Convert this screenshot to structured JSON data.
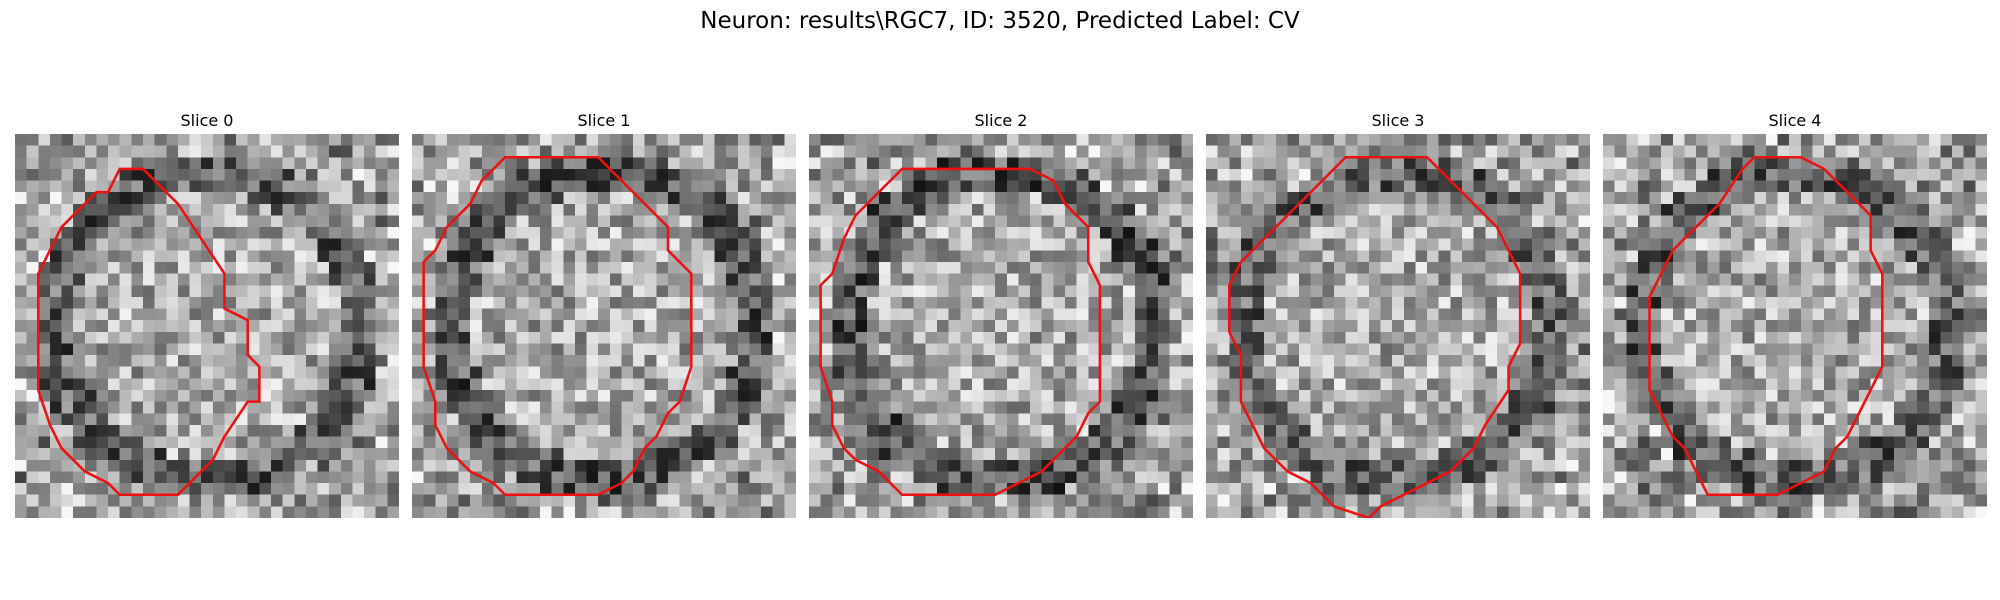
{
  "figure": {
    "title": "Neuron: results\\RGC7, ID: 3520, Predicted Label: CV"
  },
  "colors": {
    "contour": "#ee1111"
  },
  "panels": [
    {
      "title": "Slice 0",
      "seed": 11,
      "dark_rim": 0.7,
      "contour": [
        [
          11,
          3
        ],
        [
          14,
          6
        ],
        [
          18,
          12
        ],
        [
          18,
          15
        ],
        [
          20,
          16
        ],
        [
          20,
          19
        ],
        [
          21,
          20
        ],
        [
          21,
          23
        ],
        [
          20,
          23
        ],
        [
          18,
          26
        ],
        [
          17,
          28
        ],
        [
          16,
          29
        ],
        [
          14,
          31
        ],
        [
          9,
          31
        ],
        [
          8,
          30
        ],
        [
          6,
          29
        ],
        [
          5,
          28
        ],
        [
          4,
          27
        ],
        [
          3,
          25
        ],
        [
          2,
          22
        ],
        [
          2,
          12
        ],
        [
          3,
          10
        ],
        [
          4,
          8
        ],
        [
          5,
          7
        ],
        [
          6,
          6
        ],
        [
          7,
          5
        ],
        [
          8,
          5
        ],
        [
          9,
          3
        ]
      ]
    },
    {
      "title": "Slice 1",
      "seed": 23,
      "dark_rim": 0.75,
      "contour": [
        [
          8,
          2
        ],
        [
          16,
          2
        ],
        [
          18,
          4
        ],
        [
          20,
          6
        ],
        [
          22,
          8
        ],
        [
          22,
          10
        ],
        [
          24,
          12
        ],
        [
          24,
          20
        ],
        [
          23,
          23
        ],
        [
          22,
          24
        ],
        [
          21,
          26
        ],
        [
          20,
          27
        ],
        [
          19,
          29
        ],
        [
          18,
          30
        ],
        [
          16,
          31
        ],
        [
          8,
          31
        ],
        [
          7,
          30
        ],
        [
          5,
          29
        ],
        [
          4,
          28
        ],
        [
          3,
          27
        ],
        [
          2,
          25
        ],
        [
          2,
          23
        ],
        [
          1,
          20
        ],
        [
          1,
          11
        ],
        [
          2,
          10
        ],
        [
          3,
          8
        ],
        [
          5,
          6
        ],
        [
          6,
          4
        ],
        [
          7,
          3
        ]
      ]
    },
    {
      "title": "Slice 2",
      "seed": 37,
      "dark_rim": 0.8,
      "contour": [
        [
          8,
          3
        ],
        [
          19,
          3
        ],
        [
          21,
          4
        ],
        [
          22,
          6
        ],
        [
          24,
          8
        ],
        [
          24,
          11
        ],
        [
          25,
          13
        ],
        [
          25,
          23
        ],
        [
          24,
          24
        ],
        [
          23,
          26
        ],
        [
          21,
          28
        ],
        [
          20,
          29
        ],
        [
          18,
          30
        ],
        [
          16,
          31
        ],
        [
          8,
          31
        ],
        [
          6,
          29
        ],
        [
          4,
          28
        ],
        [
          3,
          27
        ],
        [
          2,
          25
        ],
        [
          2,
          23
        ],
        [
          1,
          20
        ],
        [
          1,
          13
        ],
        [
          2,
          12
        ],
        [
          3,
          9
        ],
        [
          4,
          7
        ],
        [
          6,
          5
        ],
        [
          7,
          4
        ]
      ]
    },
    {
      "title": "Slice 3",
      "seed": 53,
      "dark_rim": 0.65,
      "contour": [
        [
          12,
          2
        ],
        [
          19,
          2
        ],
        [
          21,
          4
        ],
        [
          23,
          6
        ],
        [
          25,
          8
        ],
        [
          26,
          10
        ],
        [
          27,
          12
        ],
        [
          27,
          18
        ],
        [
          26,
          20
        ],
        [
          26,
          22
        ],
        [
          24,
          25
        ],
        [
          23,
          27
        ],
        [
          21,
          29
        ],
        [
          19,
          30
        ],
        [
          17,
          31
        ],
        [
          15,
          32
        ],
        [
          14,
          33
        ],
        [
          11,
          32
        ],
        [
          9,
          30
        ],
        [
          7,
          29
        ],
        [
          5,
          27
        ],
        [
          4,
          25
        ],
        [
          3,
          23
        ],
        [
          3,
          19
        ],
        [
          2,
          17
        ],
        [
          2,
          13
        ],
        [
          3,
          11
        ],
        [
          5,
          9
        ],
        [
          7,
          7
        ],
        [
          9,
          5
        ],
        [
          11,
          3
        ]
      ]
    },
    {
      "title": "Slice 4",
      "seed": 71,
      "dark_rim": 0.7,
      "contour": [
        [
          13,
          2
        ],
        [
          17,
          2
        ],
        [
          19,
          3
        ],
        [
          21,
          5
        ],
        [
          23,
          7
        ],
        [
          23,
          10
        ],
        [
          24,
          12
        ],
        [
          24,
          20
        ],
        [
          23,
          22
        ],
        [
          22,
          24
        ],
        [
          21,
          26
        ],
        [
          20,
          27
        ],
        [
          19,
          29
        ],
        [
          17,
          30
        ],
        [
          15,
          31
        ],
        [
          9,
          31
        ],
        [
          8,
          29
        ],
        [
          7,
          27
        ],
        [
          6,
          26
        ],
        [
          5,
          24
        ],
        [
          4,
          22
        ],
        [
          4,
          14
        ],
        [
          5,
          12
        ],
        [
          6,
          10
        ],
        [
          8,
          8
        ],
        [
          10,
          6
        ],
        [
          12,
          3
        ]
      ]
    }
  ]
}
